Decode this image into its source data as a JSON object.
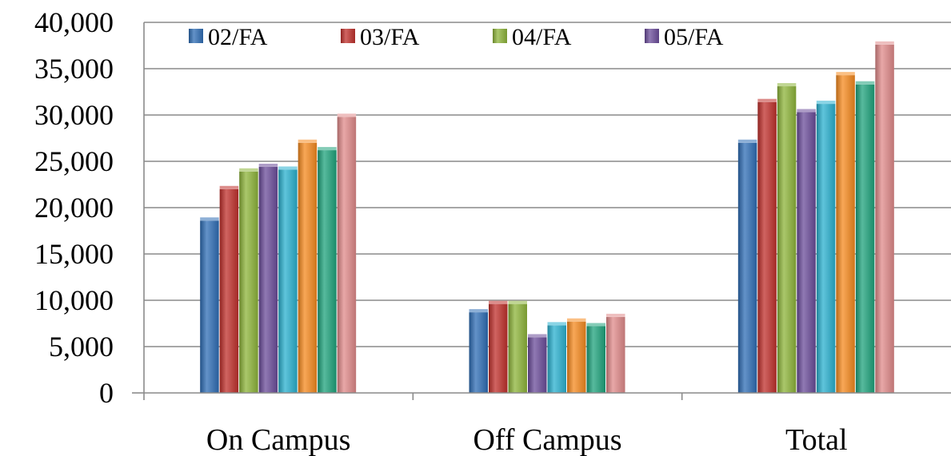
{
  "chart_data": {
    "type": "bar",
    "categories": [
      "On Campus",
      "Off Campus",
      "Total"
    ],
    "y_ticks": [
      "0",
      "5,000",
      "10,000",
      "15,000",
      "20,000",
      "25,000",
      "30,000",
      "35,000",
      "40,000"
    ],
    "ylim": [
      0,
      40000
    ],
    "grid": true,
    "legend_position": "top",
    "series": [
      {
        "name": "02/FA",
        "color": "#2f6db5",
        "values": [
          18600,
          8700,
          27000
        ]
      },
      {
        "name": "03/FA",
        "color": "#c0302c",
        "values": [
          22000,
          9600,
          31400
        ]
      },
      {
        "name": "04/FA",
        "color": "#8db43a",
        "values": [
          23900,
          9600,
          33100
        ]
      },
      {
        "name": "05/FA",
        "color": "#6b4c9a",
        "values": [
          24400,
          6000,
          30300
        ]
      },
      {
        "color": "#2ab0cf",
        "values": [
          24100,
          7300,
          31200
        ]
      },
      {
        "color": "#f58a1f",
        "values": [
          27000,
          7700,
          34300
        ]
      },
      {
        "color": "#1fa37c",
        "values": [
          26200,
          7200,
          33300
        ]
      },
      {
        "color": "#e08a8a",
        "values": [
          29800,
          8200,
          37600
        ]
      }
    ]
  }
}
